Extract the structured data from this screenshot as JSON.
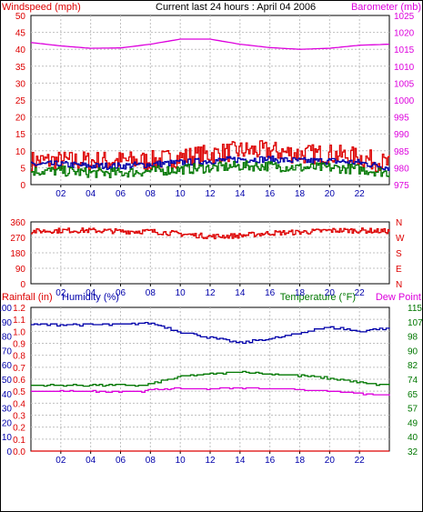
{
  "header": {
    "windspeed_label": "Windspeed (mph)",
    "title": "Current last 24 hours : April 04 2006",
    "barometer_label": "Barometer (mb)"
  },
  "colors": {
    "red": "#dd0000",
    "blue": "#0000aa",
    "green": "#007700",
    "magenta": "#dd00dd",
    "grid": "#c0c0c0",
    "frame": "#000000"
  },
  "chart_data": [
    {
      "type": "line",
      "name": "wind-barometer",
      "x_tick_labels": [
        "02",
        "04",
        "06",
        "08",
        "10",
        "12",
        "14",
        "16",
        "18",
        "20",
        "22"
      ],
      "x_range": [
        0,
        24
      ],
      "left_axis": {
        "label": "Windspeed (mph)",
        "ticks": [
          "0",
          "5",
          "10",
          "15",
          "20",
          "25",
          "30",
          "35",
          "40",
          "45",
          "50"
        ],
        "range": [
          0,
          50
        ]
      },
      "right_axis": {
        "label": "Barometer (mb)",
        "ticks": [
          "975",
          "980",
          "985",
          "990",
          "995",
          "1000",
          "1005",
          "1010",
          "1015",
          "1020",
          "1025"
        ],
        "range": [
          975,
          1025
        ]
      },
      "series": [
        {
          "name": "Windspeed (mph)",
          "axis": "left",
          "color": "#dd0000",
          "style": "noisy",
          "x": [
            0,
            2,
            4,
            6,
            8,
            10,
            12,
            14,
            16,
            18,
            20,
            22,
            24
          ],
          "y": [
            7,
            7,
            7,
            7,
            7,
            8,
            9,
            10,
            10,
            9,
            9,
            8,
            6
          ],
          "noise": 3
        },
        {
          "name": "",
          "axis": "left",
          "color": "#0000aa",
          "style": "noisy",
          "x": [
            0,
            2,
            4,
            6,
            8,
            10,
            12,
            14,
            16,
            18,
            20,
            22,
            24
          ],
          "y": [
            6,
            6,
            5.5,
            5.5,
            6,
            6.5,
            7,
            7.5,
            7.5,
            7,
            7,
            6.5,
            5
          ],
          "noise": 1
        },
        {
          "name": "",
          "axis": "left",
          "color": "#007700",
          "style": "noisy",
          "x": [
            0,
            2,
            4,
            6,
            8,
            10,
            12,
            14,
            16,
            18,
            20,
            22,
            24
          ],
          "y": [
            4,
            4,
            3.5,
            3.5,
            4,
            4.5,
            5,
            5.5,
            5.5,
            5,
            5,
            4.5,
            3.5
          ],
          "noise": 1.5
        },
        {
          "name": "Barometer (mb)",
          "axis": "right",
          "color": "#dd00dd",
          "style": "smooth",
          "x": [
            0,
            2,
            4,
            6,
            8,
            10,
            12,
            14,
            16,
            18,
            20,
            22,
            24
          ],
          "y": [
            1017,
            1016,
            1015.3,
            1015.4,
            1016.5,
            1018,
            1018,
            1016.5,
            1015.5,
            1015,
            1015.3,
            1016.2,
            1016.5
          ]
        }
      ]
    },
    {
      "type": "line",
      "name": "wind-direction",
      "x_tick_labels": [
        "02",
        "04",
        "06",
        "08",
        "10",
        "12",
        "14",
        "16",
        "18",
        "20",
        "22"
      ],
      "x_range": [
        0,
        24
      ],
      "left_axis": {
        "label": "",
        "ticks": [
          "0",
          "90",
          "180",
          "270",
          "360"
        ],
        "range": [
          0,
          360
        ]
      },
      "right_axis": {
        "label": "",
        "ticks": [
          "N",
          "E",
          "S",
          "W",
          "N"
        ],
        "range": [
          0,
          360
        ]
      },
      "series": [
        {
          "name": "",
          "axis": "left",
          "color": "#dd0000",
          "style": "noisy",
          "x": [
            0,
            2,
            4,
            6,
            8,
            10,
            12,
            14,
            16,
            18,
            20,
            22,
            24
          ],
          "y": [
            305,
            310,
            310,
            305,
            305,
            290,
            275,
            280,
            295,
            300,
            310,
            310,
            305
          ],
          "noise": 15
        }
      ]
    },
    {
      "type": "line",
      "name": "humidity-temperature",
      "x_tick_labels": [
        "02",
        "04",
        "06",
        "08",
        "10",
        "12",
        "14",
        "16",
        "18",
        "20",
        "22"
      ],
      "x_range": [
        0,
        24
      ],
      "left_label_rain": "Rainfall (in)",
      "left_label_humidity": "Humidity (%)",
      "right_label_temp": "Temperature (°F)",
      "right_label_dew": "Dew Point",
      "rain_axis": {
        "ticks": [
          "0.0",
          "0.1",
          "0.2",
          "0.3",
          "0.4",
          "0.5",
          "0.6",
          "0.7",
          "0.8",
          "0.9",
          "1.0",
          "1.1",
          "1.2"
        ],
        "range": [
          0,
          1.2
        ]
      },
      "humidity_axis": {
        "ticks": [
          "0",
          "10",
          "20",
          "30",
          "40",
          "50",
          "60",
          "70",
          "80",
          "90",
          "100"
        ],
        "range": [
          0,
          100
        ]
      },
      "temp_axis": {
        "ticks": [
          "32",
          "40",
          "49",
          "57",
          "65",
          "74",
          "82",
          "90",
          "98",
          "107",
          "115"
        ],
        "range": [
          32,
          115
        ]
      },
      "series": [
        {
          "name": "Humidity (%)",
          "axis": "humidity",
          "color": "#0000aa",
          "style": "step",
          "x": [
            0,
            2,
            4,
            6,
            7.5,
            8,
            9,
            10,
            11,
            12,
            13,
            14,
            15,
            16,
            17,
            18,
            19,
            20,
            21,
            22,
            23,
            24
          ],
          "y": [
            88,
            88,
            88,
            88,
            89,
            89,
            86,
            83,
            81,
            79,
            77,
            75,
            77,
            78,
            80,
            82,
            85,
            86,
            85,
            83,
            85,
            85
          ],
          "noise": 0.8
        },
        {
          "name": "Temperature (°F)",
          "axis": "temp",
          "color": "#007700",
          "style": "step",
          "x": [
            0,
            2,
            4,
            6,
            7.5,
            8,
            9,
            10,
            11,
            12,
            13,
            14,
            15,
            16,
            17,
            18,
            19,
            20,
            21,
            22,
            23,
            24
          ],
          "y": [
            70,
            70,
            70,
            70,
            70,
            71,
            73,
            75,
            76,
            76.5,
            77,
            78,
            77,
            76.5,
            76,
            75.5,
            75,
            74,
            73,
            71.5,
            70.5,
            70
          ],
          "noise": 0.5
        },
        {
          "name": "Dew Point",
          "axis": "temp",
          "color": "#dd00dd",
          "style": "step",
          "x": [
            0,
            2,
            4,
            6,
            7.5,
            8,
            9,
            10,
            11,
            12,
            13,
            14,
            15,
            16,
            17,
            18,
            19,
            20,
            21,
            22,
            23,
            24
          ],
          "y": [
            66.5,
            66.5,
            66.5,
            66.5,
            66.5,
            67.5,
            68,
            68,
            68,
            68,
            68.5,
            68.5,
            68.5,
            68,
            68,
            67.5,
            67,
            66.5,
            66,
            65,
            64.5,
            64
          ],
          "noise": 0.3
        },
        {
          "name": "Rainfall (in)",
          "axis": "rain",
          "color": "#dd0000",
          "style": "flat",
          "x": [
            0,
            24
          ],
          "y": [
            0.0,
            0.0
          ]
        }
      ]
    }
  ]
}
